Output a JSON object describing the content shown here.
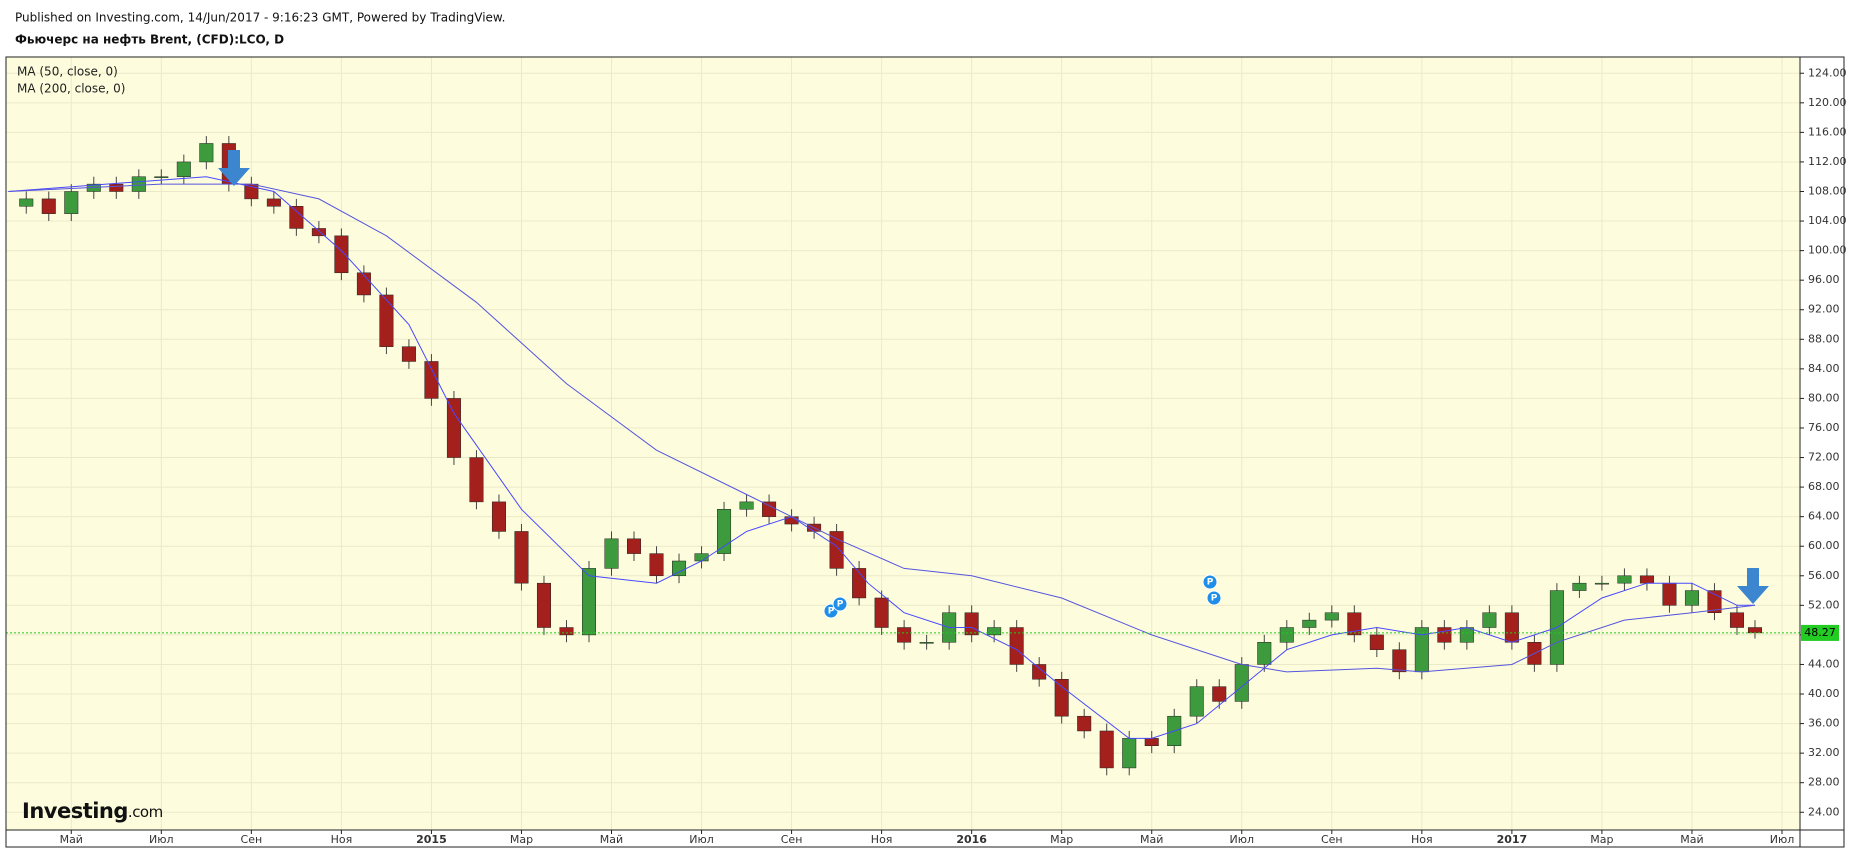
{
  "header": "Published on Investing.com, 14/Jun/2017 - 9:16:23 GMT, Powered by TradingView.",
  "logo": {
    "bold": "Investing",
    "rest": ".com"
  },
  "chart_data": {
    "type": "candlestick",
    "title": "Фьючерс на нефть Brent, (CFD):LCO, D",
    "up_color": "#3d9b3d",
    "down_color": "#a3201c",
    "wick_color": "#444444",
    "grid": true,
    "xlim": [
      2.55,
      42.4
    ],
    "xticks": [
      {
        "value": 4,
        "label": "Май"
      },
      {
        "value": 6,
        "label": "Июл"
      },
      {
        "value": 8,
        "label": "Сен"
      },
      {
        "value": 10,
        "label": "Ноя"
      },
      {
        "value": 12,
        "label": "2015"
      },
      {
        "value": 14,
        "label": "Мар"
      },
      {
        "value": 16,
        "label": "Май"
      },
      {
        "value": 18,
        "label": "Июл"
      },
      {
        "value": 20,
        "label": "Сен"
      },
      {
        "value": 22,
        "label": "Ноя"
      },
      {
        "value": 24,
        "label": "2016"
      },
      {
        "value": 26,
        "label": "Мар"
      },
      {
        "value": 28,
        "label": "Май"
      },
      {
        "value": 30,
        "label": "Июл"
      },
      {
        "value": 32,
        "label": "Сен"
      },
      {
        "value": 34,
        "label": "Ноя"
      },
      {
        "value": 36,
        "label": "2017"
      },
      {
        "value": 38,
        "label": "Мар"
      },
      {
        "value": 40,
        "label": "Май"
      },
      {
        "value": 42,
        "label": "Июл"
      }
    ],
    "ylim": [
      21.6,
      126.2
    ],
    "yticks": [
      {
        "value": 24,
        "label": "24.00"
      },
      {
        "value": 28,
        "label": "28.00"
      },
      {
        "value": 32,
        "label": "32.00"
      },
      {
        "value": 36,
        "label": "36.00"
      },
      {
        "value": 40,
        "label": "40.00"
      },
      {
        "value": 44,
        "label": "44.00"
      },
      {
        "value": 48,
        "label": "48.00"
      },
      {
        "value": 52,
        "label": "52.00"
      },
      {
        "value": 56,
        "label": "56.00"
      },
      {
        "value": 60,
        "label": "60.00"
      },
      {
        "value": 64,
        "label": "64.00"
      },
      {
        "value": 68,
        "label": "68.00"
      },
      {
        "value": 72,
        "label": "72.00"
      },
      {
        "value": 76,
        "label": "76.00"
      },
      {
        "value": 80,
        "label": "80.00"
      },
      {
        "value": 84,
        "label": "84.00"
      },
      {
        "value": 88,
        "label": "88.00"
      },
      {
        "value": 92,
        "label": "92.00"
      },
      {
        "value": 96,
        "label": "96.00"
      },
      {
        "value": 100,
        "label": "100.00"
      },
      {
        "value": 104,
        "label": "104.00"
      },
      {
        "value": 108,
        "label": "108.00"
      },
      {
        "value": 112,
        "label": "112.00"
      },
      {
        "value": 116,
        "label": "116.00"
      },
      {
        "value": 120,
        "label": "120.00"
      },
      {
        "value": 124,
        "label": "124.00"
      }
    ],
    "last_price": 48.27,
    "last_price_color": "#22cc22",
    "x": [
      3,
      3.5,
      4,
      4.5,
      5,
      5.5,
      6,
      6.5,
      7,
      7.5,
      8,
      8.5,
      9,
      9.5,
      10,
      10.5,
      11,
      11.5,
      12,
      12.5,
      13,
      13.5,
      14,
      14.5,
      15,
      15.5,
      16,
      16.5,
      17,
      17.5,
      18,
      18.5,
      19,
      19.5,
      20,
      20.5,
      21,
      21.5,
      22,
      22.5,
      23,
      23.5,
      24,
      24.5,
      25,
      25.5,
      26,
      26.5,
      27,
      27.5,
      28,
      28.5,
      29,
      29.5,
      30,
      30.5,
      31,
      31.5,
      32,
      32.5,
      33,
      33.5,
      34,
      34.5,
      35,
      35.5,
      36,
      36.5,
      37,
      37.5,
      38,
      38.5,
      39,
      39.5,
      40,
      40.5,
      41,
      41.4
    ],
    "open": [
      106,
      107,
      105,
      108,
      109,
      108,
      110,
      110,
      112,
      114.5,
      109,
      107,
      106,
      103,
      102,
      97,
      94,
      87,
      85,
      80,
      72,
      66,
      62,
      55,
      49,
      48,
      57,
      61,
      59,
      56,
      58,
      59,
      65,
      66,
      64,
      63,
      62,
      57,
      53,
      49,
      47,
      47,
      51,
      48,
      49,
      44,
      42,
      37,
      35,
      30,
      34,
      33,
      37,
      41,
      39,
      44,
      47,
      49,
      50,
      51,
      48,
      46,
      43,
      49,
      47,
      49,
      51,
      47,
      44,
      54,
      55,
      55,
      56,
      55,
      52,
      54,
      51,
      49
    ],
    "high": [
      108,
      108,
      109,
      110,
      110,
      111,
      111,
      113,
      115.5,
      115.5,
      110,
      108,
      107,
      104,
      103,
      98,
      95,
      88,
      86,
      81,
      73,
      67,
      63,
      56,
      50,
      58,
      62,
      62,
      60,
      59,
      60,
      66,
      67,
      67,
      65,
      64,
      63,
      58,
      54,
      50,
      48,
      52,
      52,
      50,
      50,
      45,
      43,
      38,
      36,
      35,
      35,
      38,
      42,
      42,
      45,
      48,
      50,
      51,
      52,
      52,
      49,
      47,
      50,
      50,
      50,
      52,
      52,
      48,
      55,
      56,
      56,
      57,
      57,
      56,
      55,
      55,
      52,
      50
    ],
    "low": [
      105,
      104,
      104,
      107,
      107,
      107,
      109,
      109,
      111,
      108,
      106,
      105,
      102,
      101,
      96,
      93,
      86,
      84,
      79,
      71,
      65,
      61,
      54,
      48,
      47,
      47,
      56,
      58,
      55,
      55,
      57,
      58,
      64,
      63,
      62,
      61,
      56,
      52,
      48,
      46,
      46,
      46,
      47,
      47,
      43,
      41,
      36,
      34,
      29,
      29,
      32,
      32,
      36,
      38,
      38,
      43,
      46,
      48,
      49,
      47,
      45,
      42,
      42,
      46,
      46,
      48,
      46,
      43,
      43,
      53,
      54,
      54,
      54,
      51,
      51,
      50,
      48,
      47.5
    ],
    "close": [
      107,
      105,
      108,
      109,
      108,
      110,
      110,
      112,
      114.5,
      109,
      107,
      106,
      103,
      102,
      97,
      94,
      87,
      85,
      80,
      72,
      66,
      62,
      55,
      49,
      48,
      57,
      61,
      59,
      56,
      58,
      59,
      65,
      66,
      64,
      63,
      62,
      57,
      53,
      49,
      47,
      47,
      51,
      48,
      49,
      44,
      42,
      37,
      35,
      30,
      34,
      33,
      37,
      41,
      39,
      44,
      47,
      49,
      50,
      51,
      48,
      46,
      43,
      49,
      47,
      49,
      51,
      47,
      44,
      54,
      55,
      55,
      56,
      55,
      52,
      54,
      51,
      49,
      48.27
    ],
    "series": [
      {
        "name": "MA (50, close, 0)",
        "color": "#4848ff",
        "x": [
          2.6,
          7,
          8.5,
          10,
          11.5,
          12.5,
          14,
          15.5,
          17,
          18,
          19,
          20,
          21,
          21.7,
          22.5,
          23.5,
          24,
          25,
          26,
          27.5,
          28,
          29,
          30,
          31,
          32,
          33,
          34,
          35,
          36,
          37,
          38,
          39,
          40,
          41,
          41.4
        ],
        "values": [
          108,
          110,
          108,
          100,
          90,
          78,
          65,
          56,
          55,
          58,
          62,
          64,
          60,
          55,
          51,
          49,
          49,
          46,
          41,
          34,
          34,
          36,
          41,
          46,
          48,
          49,
          48,
          49,
          47,
          49,
          53,
          55,
          55,
          52,
          52
        ]
      },
      {
        "name": "MA (200, close, 0)",
        "color": "#5555dd",
        "x": [
          2.6,
          6,
          8,
          9.5,
          11,
          13,
          15,
          17,
          19,
          21,
          22.5,
          24,
          26,
          28,
          30,
          31,
          33,
          34,
          36,
          37,
          38.5,
          40,
          41.4
        ],
        "values": [
          108,
          109,
          109,
          107,
          102,
          93,
          82,
          73,
          67,
          61,
          57,
          56,
          53,
          48,
          44,
          43,
          43.5,
          43,
          44,
          47,
          50,
          51,
          52
        ]
      }
    ]
  }
}
